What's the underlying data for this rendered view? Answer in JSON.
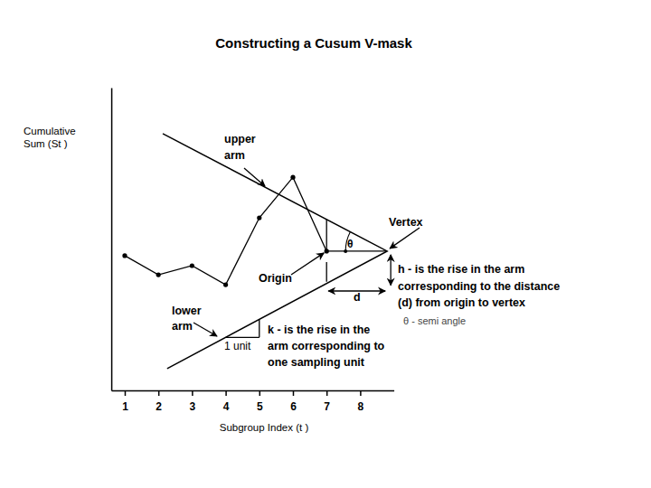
{
  "chart_data": {
    "type": "line",
    "title": "Constructing a Cusum V-mask",
    "ylabel": [
      "Cumulative",
      "Sum (St )"
    ],
    "xlabel": "Subgroup Index (t )",
    "x": [
      1,
      2,
      3,
      4,
      5,
      6,
      7
    ],
    "values": [
      4.45,
      3.82,
      4.12,
      3.49,
      5.7,
      7.04,
      4.6
    ],
    "color": "#000000",
    "marker": "circle",
    "xlim": [
      0.6,
      9.0
    ],
    "xticks": [
      1,
      2,
      3,
      4,
      5,
      6,
      7,
      8
    ],
    "ylim": [
      0,
      10
    ],
    "yticks": [],
    "tick_labels": "x",
    "grid": false,
    "v_mask": {
      "x": [
        2.13,
        8.8,
        2.26
      ],
      "y": [
        8.48,
        4.6,
        0.72
      ]
    },
    "annotations": {
      "upper_arm": [
        "upper",
        "arm"
      ],
      "vertex": [
        "Vertex"
      ],
      "theta": [
        "θ"
      ],
      "origin": [
        "Origin"
      ],
      "d": [
        "d"
      ],
      "h": [
        "h - is the rise in the arm",
        "corresponding to the distance",
        "(d) from origin to vertex"
      ],
      "semi_angle": [
        "θ - semi angle"
      ],
      "lower_arm": [
        "lower",
        "arm"
      ],
      "k": [
        "k - is the rise in the",
        "arm corresponding to",
        "one sampling unit"
      ],
      "unit": [
        "1 unit"
      ]
    }
  }
}
